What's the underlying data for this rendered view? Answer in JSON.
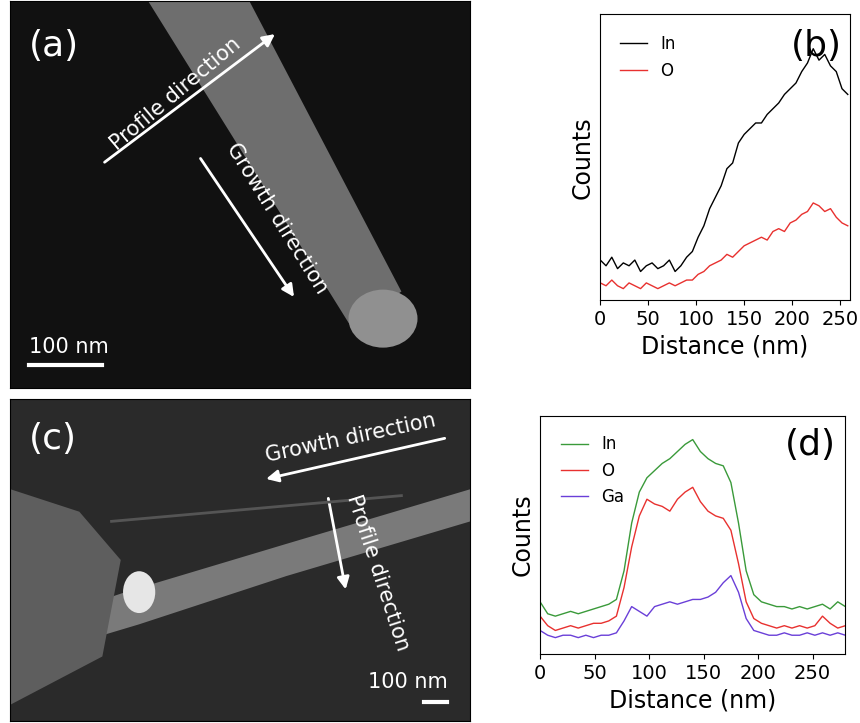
{
  "chart_data": [
    {
      "type": "line",
      "title": "(b)",
      "x_label": "Distance (nm)",
      "y_label": "Counts",
      "x": [
        0,
        6,
        12,
        18,
        24,
        30,
        36,
        42,
        48,
        54,
        60,
        66,
        72,
        78,
        84,
        90,
        96,
        102,
        108,
        114,
        120,
        126,
        132,
        138,
        144,
        150,
        156,
        162,
        168,
        174,
        180,
        186,
        192,
        198,
        204,
        210,
        216,
        222,
        228,
        234,
        240,
        246,
        252,
        258
      ],
      "series": [
        {
          "name": "In",
          "color": "#000000",
          "values": [
            0.14,
            0.12,
            0.15,
            0.11,
            0.13,
            0.12,
            0.14,
            0.1,
            0.12,
            0.13,
            0.11,
            0.12,
            0.14,
            0.1,
            0.12,
            0.15,
            0.17,
            0.22,
            0.26,
            0.32,
            0.36,
            0.4,
            0.46,
            0.48,
            0.55,
            0.58,
            0.6,
            0.62,
            0.62,
            0.65,
            0.67,
            0.69,
            0.72,
            0.74,
            0.76,
            0.8,
            0.83,
            0.88,
            0.84,
            0.86,
            0.82,
            0.8,
            0.74,
            0.72
          ]
        },
        {
          "name": "O",
          "color": "#e8312f",
          "values": [
            0.06,
            0.05,
            0.07,
            0.05,
            0.04,
            0.06,
            0.05,
            0.04,
            0.06,
            0.05,
            0.04,
            0.05,
            0.06,
            0.05,
            0.06,
            0.07,
            0.07,
            0.09,
            0.1,
            0.12,
            0.13,
            0.14,
            0.16,
            0.15,
            0.17,
            0.19,
            0.2,
            0.21,
            0.22,
            0.21,
            0.24,
            0.25,
            0.24,
            0.27,
            0.28,
            0.3,
            0.31,
            0.34,
            0.33,
            0.31,
            0.32,
            0.29,
            0.27,
            0.26
          ]
        }
      ],
      "xlim": [
        0,
        260
      ],
      "xticks": [
        0,
        50,
        100,
        150,
        200,
        250
      ],
      "ylim": [
        0,
        1
      ],
      "tick_labels": "x",
      "legend": "upper left"
    },
    {
      "type": "line",
      "title": "(d)",
      "x_label": "Distance (nm)",
      "y_label": "Counts",
      "x": [
        0,
        7,
        14,
        21,
        28,
        35,
        42,
        49,
        56,
        63,
        70,
        77,
        84,
        91,
        98,
        105,
        112,
        119,
        126,
        133,
        140,
        147,
        154,
        161,
        168,
        175,
        182,
        189,
        196,
        203,
        210,
        217,
        224,
        231,
        238,
        245,
        252,
        259,
        266,
        273,
        280
      ],
      "series": [
        {
          "name": "In",
          "color": "#3a9a3a",
          "values": [
            0.22,
            0.17,
            0.16,
            0.17,
            0.18,
            0.17,
            0.18,
            0.19,
            0.2,
            0.21,
            0.23,
            0.35,
            0.55,
            0.68,
            0.74,
            0.77,
            0.8,
            0.82,
            0.85,
            0.88,
            0.9,
            0.85,
            0.82,
            0.8,
            0.79,
            0.72,
            0.55,
            0.35,
            0.25,
            0.22,
            0.21,
            0.2,
            0.2,
            0.19,
            0.2,
            0.19,
            0.2,
            0.21,
            0.19,
            0.22,
            0.2
          ]
        },
        {
          "name": "O",
          "color": "#e8312f",
          "values": [
            0.16,
            0.12,
            0.1,
            0.11,
            0.12,
            0.11,
            0.12,
            0.13,
            0.13,
            0.14,
            0.16,
            0.28,
            0.45,
            0.58,
            0.65,
            0.63,
            0.62,
            0.6,
            0.65,
            0.68,
            0.7,
            0.64,
            0.6,
            0.58,
            0.57,
            0.52,
            0.38,
            0.22,
            0.15,
            0.13,
            0.12,
            0.11,
            0.12,
            0.11,
            0.12,
            0.11,
            0.12,
            0.16,
            0.13,
            0.11,
            0.12
          ]
        },
        {
          "name": "Ga",
          "color": "#6a3fd8",
          "values": [
            0.1,
            0.08,
            0.07,
            0.08,
            0.08,
            0.07,
            0.08,
            0.07,
            0.08,
            0.08,
            0.09,
            0.14,
            0.2,
            0.18,
            0.16,
            0.2,
            0.21,
            0.22,
            0.21,
            0.22,
            0.23,
            0.23,
            0.24,
            0.26,
            0.3,
            0.33,
            0.26,
            0.15,
            0.1,
            0.09,
            0.08,
            0.08,
            0.09,
            0.08,
            0.08,
            0.09,
            0.08,
            0.09,
            0.08,
            0.09,
            0.08
          ]
        }
      ],
      "xlim": [
        0,
        280
      ],
      "xticks": [
        0,
        50,
        100,
        150,
        200,
        250
      ],
      "ylim": [
        0,
        1
      ],
      "tick_labels": "x",
      "legend": "upper left"
    }
  ],
  "images": [
    {
      "label": "(a)",
      "profile_label": "Profile direction",
      "growth_label": "Growth direction",
      "scale_bar": "100 nm"
    },
    {
      "label": "(c)",
      "profile_label": "Profile direction",
      "growth_label": "Growth direction",
      "scale_bar": "100 nm"
    }
  ]
}
